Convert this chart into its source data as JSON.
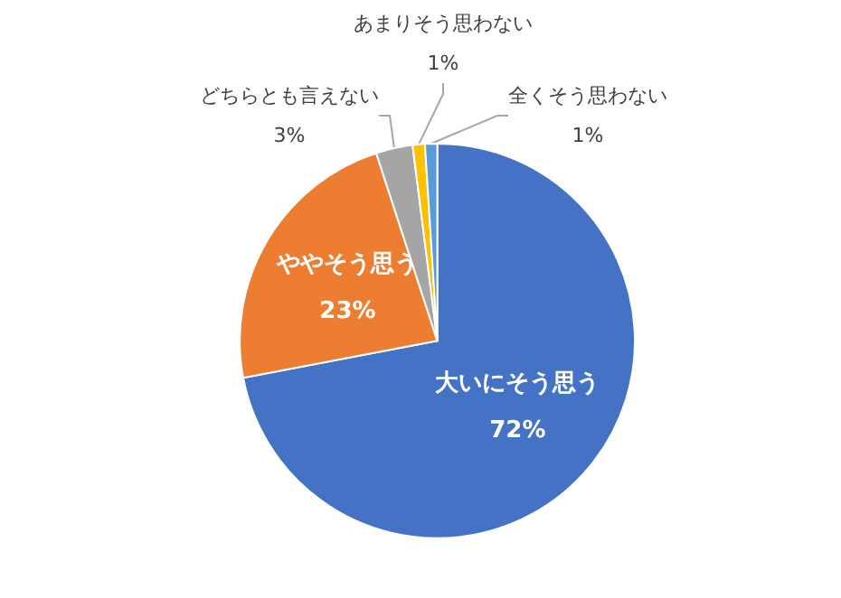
{
  "chart_data": {
    "type": "pie",
    "categories": [
      "大いにそう思う",
      "ややそう思う",
      "どちらとも言えない",
      "あまりそう思わない",
      "全くそう思わない"
    ],
    "values": [
      72,
      23,
      3,
      1,
      1
    ],
    "value_labels": [
      "72%",
      "23%",
      "3%",
      "1%",
      "1%"
    ],
    "colors": [
      "#4472c4",
      "#ed7d31",
      "#a5a5a5",
      "#ffc000",
      "#5b9bd5"
    ],
    "legend": false
  }
}
